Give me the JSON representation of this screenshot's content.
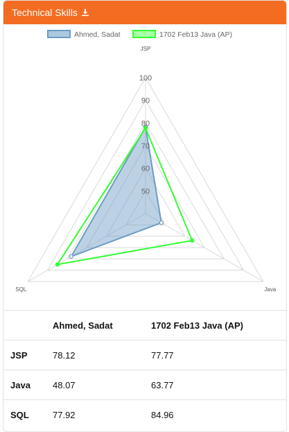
{
  "header": {
    "title": "Technical Skills",
    "download_icon": "download-icon"
  },
  "colors": {
    "header_bg": "#f36c21",
    "series1_stroke": "#6a9cc4",
    "series1_fill": "#7aa7c9",
    "series2_stroke": "#33ff33",
    "grid": "#d9d9d9"
  },
  "chart_data": {
    "type": "radar",
    "axes": [
      "JSP",
      "Java",
      "SQL"
    ],
    "r_ticks": [
      50,
      60,
      70,
      80,
      90,
      100
    ],
    "r_min": 40,
    "r_max": 100,
    "legend_position": "top",
    "series": [
      {
        "name": "Ahmed, Sadat",
        "values": [
          78.12,
          48.07,
          77.92
        ],
        "color": "#6a9cc4",
        "fill": true
      },
      {
        "name": "1702 Feb13 Java (AP)",
        "values": [
          77.77,
          63.77,
          84.96
        ],
        "color": "#33ff33",
        "fill": false
      }
    ]
  },
  "table": {
    "columns": [
      "",
      "Ahmed, Sadat",
      "1702 Feb13 Java (AP)"
    ],
    "rows": [
      {
        "label": "JSP",
        "values": [
          "78.12",
          "77.77"
        ]
      },
      {
        "label": "Java",
        "values": [
          "48.07",
          "63.77"
        ]
      },
      {
        "label": "SQL",
        "values": [
          "77.92",
          "84.96"
        ]
      }
    ]
  }
}
